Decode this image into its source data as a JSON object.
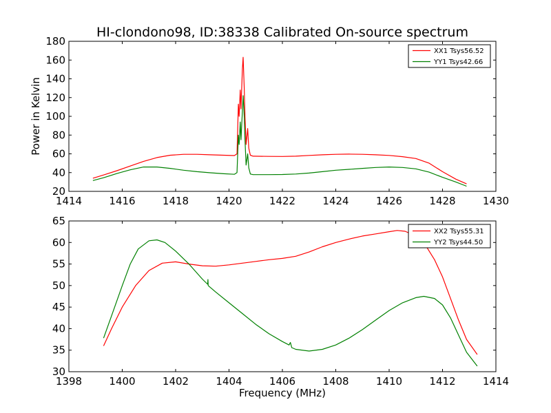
{
  "chart_data": [
    {
      "type": "line",
      "title": "HI-clondono98, ID:38338 Calibrated On-source spectrum",
      "xlabel": "",
      "ylabel": "Power in Kelvin",
      "xlim": [
        1414,
        1430
      ],
      "ylim": [
        20,
        180
      ],
      "xticks": [
        "1414",
        "1416",
        "1418",
        "1420",
        "1422",
        "1424",
        "1426",
        "1428",
        "1430"
      ],
      "yticks": [
        "20",
        "40",
        "60",
        "80",
        "100",
        "120",
        "140",
        "160",
        "180"
      ],
      "legend_position": "top-right",
      "grid": false,
      "series": [
        {
          "name": "XX1 Tsys56.52",
          "color": "#ff0000",
          "points": [
            [
              1414.9,
              34
            ],
            [
              1415.3,
              37.5
            ],
            [
              1415.8,
              42
            ],
            [
              1416.3,
              47
            ],
            [
              1416.8,
              52
            ],
            [
              1417.3,
              56
            ],
            [
              1417.8,
              58.5
            ],
            [
              1418.3,
              59.5
            ],
            [
              1418.8,
              59.5
            ],
            [
              1419.3,
              59
            ],
            [
              1419.8,
              58.5
            ],
            [
              1420.2,
              58.2
            ],
            [
              1420.3,
              60
            ],
            [
              1420.35,
              113
            ],
            [
              1420.38,
              100
            ],
            [
              1420.42,
              128
            ],
            [
              1420.45,
              108
            ],
            [
              1420.5,
              150
            ],
            [
              1420.53,
              163
            ],
            [
              1420.57,
              130
            ],
            [
              1420.6,
              100
            ],
            [
              1420.64,
              70
            ],
            [
              1420.7,
              87
            ],
            [
              1420.74,
              66
            ],
            [
              1420.8,
              58.5
            ],
            [
              1420.9,
              57.5
            ],
            [
              1421.5,
              57.3
            ],
            [
              1422,
              57.2
            ],
            [
              1422.5,
              57.5
            ],
            [
              1423,
              58.3
            ],
            [
              1423.5,
              59
            ],
            [
              1424,
              59.5
            ],
            [
              1424.5,
              59.7
            ],
            [
              1425,
              59.5
            ],
            [
              1425.5,
              59
            ],
            [
              1426,
              58.3
            ],
            [
              1426.5,
              57
            ],
            [
              1427,
              55
            ],
            [
              1427.5,
              50
            ],
            [
              1428,
              41
            ],
            [
              1428.5,
              33
            ],
            [
              1428.9,
              28
            ]
          ]
        },
        {
          "name": "YY1 Tsys42.66",
          "color": "#008000",
          "points": [
            [
              1414.9,
              31.5
            ],
            [
              1415.3,
              34.5
            ],
            [
              1415.8,
              39
            ],
            [
              1416.3,
              43
            ],
            [
              1416.8,
              46
            ],
            [
              1417.3,
              46
            ],
            [
              1417.8,
              44.5
            ],
            [
              1418.3,
              42.5
            ],
            [
              1418.8,
              41
            ],
            [
              1419.3,
              39.8
            ],
            [
              1419.8,
              38.8
            ],
            [
              1420.2,
              38.2
            ],
            [
              1420.3,
              40
            ],
            [
              1420.35,
              80
            ],
            [
              1420.38,
              70
            ],
            [
              1420.42,
              94
            ],
            [
              1420.45,
              75
            ],
            [
              1420.5,
              105
            ],
            [
              1420.53,
              122
            ],
            [
              1420.57,
              100
            ],
            [
              1420.6,
              75
            ],
            [
              1420.64,
              48
            ],
            [
              1420.7,
              60
            ],
            [
              1420.74,
              45
            ],
            [
              1420.8,
              38.5
            ],
            [
              1420.9,
              37.8
            ],
            [
              1421.5,
              37.8
            ],
            [
              1422,
              38
            ],
            [
              1422.5,
              38.5
            ],
            [
              1423,
              39.5
            ],
            [
              1423.5,
              41
            ],
            [
              1424,
              42.5
            ],
            [
              1424.5,
              43.5
            ],
            [
              1425,
              44.5
            ],
            [
              1425.5,
              45.5
            ],
            [
              1426,
              46
            ],
            [
              1426.5,
              45.5
            ],
            [
              1427,
              44
            ],
            [
              1427.5,
              40.5
            ],
            [
              1428,
              35
            ],
            [
              1428.5,
              30
            ],
            [
              1428.9,
              25.5
            ]
          ]
        }
      ]
    },
    {
      "type": "line",
      "title": "",
      "xlabel": "Frequency (MHz)",
      "ylabel": "",
      "xlim": [
        1398,
        1414
      ],
      "ylim": [
        30,
        65
      ],
      "xticks": [
        "1398",
        "1400",
        "1402",
        "1404",
        "1406",
        "1408",
        "1410",
        "1412",
        "1414"
      ],
      "yticks": [
        "30",
        "35",
        "40",
        "45",
        "50",
        "55",
        "60",
        "65"
      ],
      "legend_position": "top-right",
      "grid": false,
      "series": [
        {
          "name": "XX2 Tsys55.31",
          "color": "#ff0000",
          "points": [
            [
              1399.3,
              36
            ],
            [
              1399.6,
              40
            ],
            [
              1400,
              45
            ],
            [
              1400.5,
              50
            ],
            [
              1401,
              53.5
            ],
            [
              1401.5,
              55.2
            ],
            [
              1402,
              55.5
            ],
            [
              1402.5,
              55
            ],
            [
              1403,
              54.6
            ],
            [
              1403.5,
              54.5
            ],
            [
              1404,
              54.8
            ],
            [
              1404.5,
              55.2
            ],
            [
              1405,
              55.6
            ],
            [
              1405.5,
              56
            ],
            [
              1406,
              56.3
            ],
            [
              1406.5,
              56.8
            ],
            [
              1407,
              57.8
            ],
            [
              1407.5,
              59
            ],
            [
              1408,
              60
            ],
            [
              1408.5,
              60.8
            ],
            [
              1409,
              61.5
            ],
            [
              1409.5,
              62
            ],
            [
              1410,
              62.5
            ],
            [
              1410.3,
              62.8
            ],
            [
              1410.6,
              62.6
            ],
            [
              1411,
              61.5
            ],
            [
              1411.3,
              60
            ],
            [
              1411.7,
              56
            ],
            [
              1412,
              52
            ],
            [
              1412.3,
              47
            ],
            [
              1412.6,
              42
            ],
            [
              1412.9,
              37.5
            ],
            [
              1413.3,
              34
            ]
          ]
        },
        {
          "name": "YY2 Tsys44.50",
          "color": "#008000",
          "points": [
            [
              1399.3,
              37.8
            ],
            [
              1399.6,
              43
            ],
            [
              1400,
              50
            ],
            [
              1400.3,
              55
            ],
            [
              1400.6,
              58.5
            ],
            [
              1401,
              60.4
            ],
            [
              1401.3,
              60.6
            ],
            [
              1401.6,
              60
            ],
            [
              1402,
              58
            ],
            [
              1402.5,
              55
            ],
            [
              1403,
              51.5
            ],
            [
              1403.2,
              50.3
            ],
            [
              1403.21,
              51.4
            ],
            [
              1403.22,
              50
            ],
            [
              1403.5,
              48.5
            ],
            [
              1404,
              46
            ],
            [
              1404.5,
              43.5
            ],
            [
              1405,
              41
            ],
            [
              1405.5,
              38.8
            ],
            [
              1406,
              37
            ],
            [
              1406.25,
              36.2
            ],
            [
              1406.3,
              36.8
            ],
            [
              1406.35,
              35.6
            ],
            [
              1406.5,
              35.2
            ],
            [
              1407,
              34.8
            ],
            [
              1407.5,
              35.2
            ],
            [
              1408,
              36.2
            ],
            [
              1408.5,
              37.8
            ],
            [
              1409,
              39.8
            ],
            [
              1409.5,
              42
            ],
            [
              1410,
              44.2
            ],
            [
              1410.5,
              46
            ],
            [
              1411,
              47.2
            ],
            [
              1411.3,
              47.5
            ],
            [
              1411.7,
              47
            ],
            [
              1412,
              45.5
            ],
            [
              1412.3,
              42.5
            ],
            [
              1412.6,
              38.5
            ],
            [
              1412.9,
              34.5
            ],
            [
              1413.3,
              31.3
            ]
          ]
        }
      ]
    }
  ]
}
